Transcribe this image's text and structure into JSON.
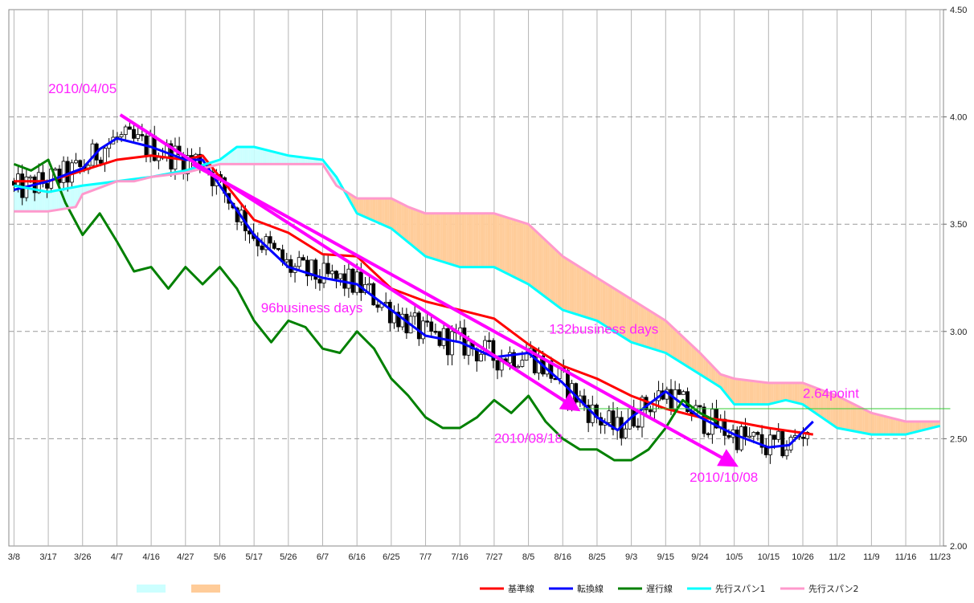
{
  "chart_data": {
    "type": "line",
    "title": "",
    "xlabel": "",
    "ylabel": "",
    "ylim": [
      2.0,
      4.5
    ],
    "y_ticks": [
      "2.00",
      "2.50",
      "3.00",
      "3.50",
      "4.00",
      "4.50"
    ],
    "x_tick_labels": [
      "3/8",
      "3/17",
      "3/26",
      "4/7",
      "4/16",
      "4/27",
      "5/6",
      "5/17",
      "5/26",
      "6/7",
      "6/16",
      "6/25",
      "7/7",
      "7/16",
      "7/27",
      "8/5",
      "8/16",
      "8/25",
      "9/3",
      "9/15",
      "9/24",
      "10/5",
      "10/15",
      "10/26",
      "11/2",
      "11/9",
      "11/16",
      "11/23"
    ],
    "grid": true,
    "legend_position": "bottom-right",
    "colors": {
      "kijun": "#ff0000",
      "tenkan": "#0000ff",
      "chikou": "#008000",
      "span1": "#00ffff",
      "span2": "#ff99cc",
      "cloud_bull": "#ccffff",
      "cloud_bear": "#ffcc99",
      "trend_arrow": "#ff00ff",
      "level_line": "#33cc33"
    },
    "series": [
      {
        "name": "基準線",
        "key": "kijun",
        "x": [
          0,
          1,
          2,
          3,
          4,
          5,
          5.5,
          6,
          7,
          8,
          9,
          10,
          11,
          12,
          13,
          14,
          15,
          16,
          17,
          18,
          19,
          20,
          21,
          22,
          23.3
        ],
        "values": [
          3.7,
          3.7,
          3.75,
          3.8,
          3.82,
          3.8,
          3.82,
          3.72,
          3.52,
          3.46,
          3.36,
          3.35,
          3.2,
          3.14,
          3.1,
          3.06,
          2.94,
          2.84,
          2.78,
          2.7,
          2.64,
          2.6,
          2.58,
          2.55,
          2.52
        ]
      },
      {
        "name": "転換線",
        "key": "tenkan",
        "x": [
          0,
          1,
          2,
          2.5,
          3,
          4,
          5,
          5.5,
          6,
          7,
          8,
          9,
          10,
          11,
          12,
          13,
          14,
          15,
          16,
          17,
          17.6,
          18,
          19,
          20,
          21,
          22,
          22.6,
          23.3
        ],
        "values": [
          3.66,
          3.7,
          3.76,
          3.85,
          3.9,
          3.86,
          3.8,
          3.8,
          3.68,
          3.45,
          3.3,
          3.25,
          3.22,
          3.1,
          2.98,
          2.95,
          2.88,
          2.9,
          2.76,
          2.6,
          2.54,
          2.6,
          2.72,
          2.6,
          2.52,
          2.46,
          2.47,
          2.58
        ]
      },
      {
        "name": "遅行線",
        "key": "chikou",
        "x": [
          0,
          0.5,
          1,
          1.5,
          2,
          2.5,
          3,
          3.5,
          4,
          4.5,
          5,
          5.5,
          6,
          6.5,
          7,
          7.5,
          8,
          8.5,
          9,
          9.5,
          10,
          10.5,
          11,
          11.5,
          12,
          12.5,
          13,
          13.5,
          14,
          14.5,
          15,
          15.5,
          16,
          16.5,
          17,
          17.5,
          18,
          18.5,
          19,
          19.5,
          20,
          20.5
        ],
        "values": [
          3.78,
          3.75,
          3.8,
          3.6,
          3.45,
          3.55,
          3.42,
          3.28,
          3.3,
          3.2,
          3.3,
          3.22,
          3.3,
          3.2,
          3.05,
          2.95,
          3.05,
          3.02,
          2.92,
          2.9,
          3.0,
          2.92,
          2.78,
          2.7,
          2.6,
          2.55,
          2.55,
          2.6,
          2.68,
          2.62,
          2.7,
          2.58,
          2.5,
          2.45,
          2.45,
          2.4,
          2.4,
          2.45,
          2.55,
          2.68,
          2.62,
          2.58
        ]
      },
      {
        "name": "先行スパン1",
        "key": "span1",
        "x": [
          0,
          1,
          2,
          3,
          4,
          5,
          6,
          6.5,
          7,
          8,
          9,
          9.4,
          10,
          11,
          12,
          13,
          14,
          15,
          16,
          17,
          18,
          19,
          20,
          20.6,
          21,
          22,
          22.5,
          23,
          24,
          25,
          26,
          27
        ],
        "values": [
          3.68,
          3.65,
          3.68,
          3.7,
          3.72,
          3.75,
          3.8,
          3.86,
          3.86,
          3.82,
          3.8,
          3.72,
          3.55,
          3.48,
          3.35,
          3.3,
          3.3,
          3.22,
          3.1,
          3.05,
          2.95,
          2.9,
          2.8,
          2.74,
          2.66,
          2.66,
          2.68,
          2.66,
          2.55,
          2.52,
          2.52,
          2.56
        ]
      },
      {
        "name": "先行スパン2",
        "key": "span2",
        "x": [
          0,
          1,
          1.8,
          2,
          3,
          3.5,
          4,
          5,
          6,
          7,
          8,
          9,
          9.4,
          10,
          11,
          11.5,
          12,
          13,
          14,
          15,
          16,
          17,
          18,
          19,
          20,
          20.6,
          21,
          22,
          23,
          24,
          25,
          26,
          27
        ],
        "values": [
          3.56,
          3.56,
          3.58,
          3.64,
          3.7,
          3.7,
          3.72,
          3.74,
          3.78,
          3.78,
          3.78,
          3.78,
          3.68,
          3.62,
          3.62,
          3.58,
          3.55,
          3.55,
          3.55,
          3.5,
          3.35,
          3.25,
          3.15,
          3.05,
          2.9,
          2.8,
          2.78,
          2.76,
          2.76,
          2.7,
          2.62,
          2.58,
          2.58
        ]
      },
      {
        "name": "",
        "key": "level",
        "x": [
          16.2,
          27.3
        ],
        "values": [
          2.64,
          2.64
        ]
      }
    ],
    "arrows": [
      {
        "from": [
          3.1,
          4.01
        ],
        "to": [
          16.4,
          2.64
        ]
      },
      {
        "from": [
          5.2,
          3.78
        ],
        "to": [
          21.0,
          2.38
        ]
      }
    ],
    "annotations": [
      {
        "text": "2010/04/05",
        "x": 1.0,
        "y": 4.11
      },
      {
        "text": "96business days",
        "x": 7.2,
        "y": 3.09
      },
      {
        "text": "132business days",
        "x": 15.6,
        "y": 2.99
      },
      {
        "text": "2010/08/18",
        "x": 14.0,
        "y": 2.48
      },
      {
        "text": "2010/10/08",
        "x": 19.7,
        "y": 2.3
      },
      {
        "text": "2.64point",
        "x": 23.0,
        "y": 2.69
      }
    ],
    "candle_range": {
      "x_start": 0,
      "x_end": 23.3
    }
  },
  "legend": {
    "swatches": [
      {
        "color": "#ccffff"
      },
      {
        "color": "#ffcc99"
      }
    ],
    "items": [
      {
        "label": "基準線",
        "color": "#ff0000"
      },
      {
        "label": "転換線",
        "color": "#0000ff"
      },
      {
        "label": "遅行線",
        "color": "#008000"
      },
      {
        "label": "先行スパン1",
        "color": "#00ffff"
      },
      {
        "label": "先行スパン2",
        "color": "#ff99cc"
      }
    ]
  }
}
